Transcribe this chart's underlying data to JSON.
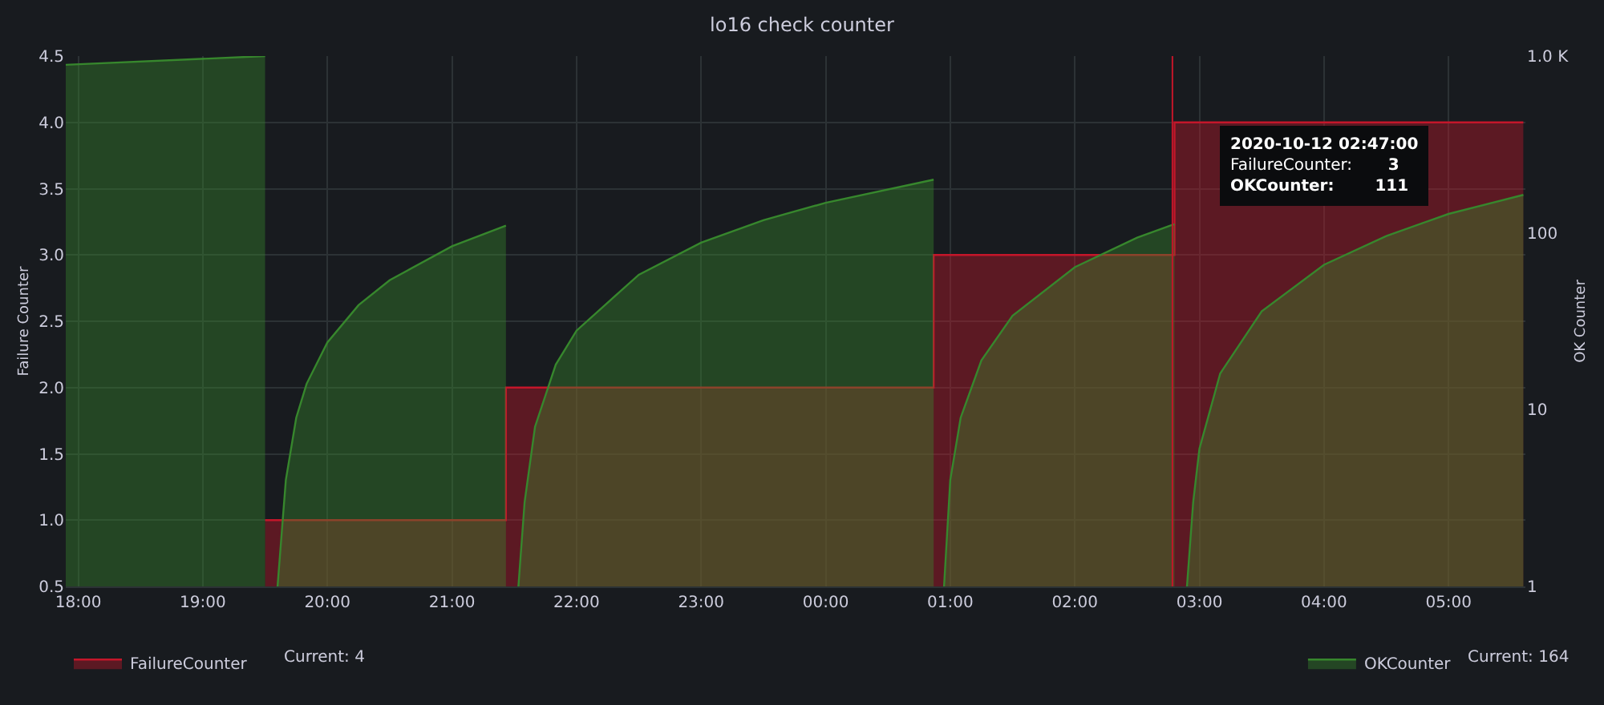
{
  "chart_data": {
    "type": "area",
    "title": "lo16 check counter",
    "ylabel": "Failure Counter",
    "y2label": "OK Counter",
    "xlim": [
      "2020-10-11T17:54",
      "2020-10-12T05:37"
    ],
    "xticks": [
      {
        "value": "2020-10-11T18:00",
        "label": "18:00"
      },
      {
        "value": "2020-10-11T19:00",
        "label": "19:00"
      },
      {
        "value": "2020-10-11T20:00",
        "label": "20:00"
      },
      {
        "value": "2020-10-11T21:00",
        "label": "21:00"
      },
      {
        "value": "2020-10-11T22:00",
        "label": "22:00"
      },
      {
        "value": "2020-10-11T23:00",
        "label": "23:00"
      },
      {
        "value": "2020-10-12T00:00",
        "label": "00:00"
      },
      {
        "value": "2020-10-12T01:00",
        "label": "01:00"
      },
      {
        "value": "2020-10-12T02:00",
        "label": "02:00"
      },
      {
        "value": "2020-10-12T03:00",
        "label": "03:00"
      },
      {
        "value": "2020-10-12T04:00",
        "label": "04:00"
      },
      {
        "value": "2020-10-12T05:00",
        "label": "05:00"
      }
    ],
    "ylim": [
      0.5,
      4.5
    ],
    "yticks": [
      0.5,
      {
        "value": 1,
        "label": "1.0"
      },
      1.5,
      {
        "value": 2,
        "label": "2.0"
      },
      2.5,
      {
        "value": 3,
        "label": "3.0"
      },
      3.5,
      {
        "value": 4,
        "label": "4.0"
      },
      4.5
    ],
    "y2lim": [
      1,
      1000
    ],
    "y2ticks": [
      1,
      10,
      100,
      {
        "value": 1000,
        "label": "1.0 K"
      }
    ],
    "log": "y2",
    "grid": true,
    "legend": "bottom",
    "series": [
      {
        "name": "FailureCounter",
        "color": "#c4162a",
        "x": [
          "2020-10-11T19:30",
          "2020-10-11T21:26",
          "2020-10-11T21:26",
          "2020-10-12T00:52",
          "2020-10-12T00:52",
          "2020-10-12T02:48",
          "2020-10-12T02:48",
          "2020-10-12T05:36"
        ],
        "values": [
          1,
          1,
          2,
          2,
          3,
          3,
          4,
          4
        ]
      },
      {
        "name": "OKCounter",
        "axis": "y2",
        "color": "#37872d",
        "x": [
          "2020-10-11T17:54",
          "2020-10-11T19:30",
          "2020-10-11T19:33",
          "2020-10-11T19:36",
          "2020-10-11T19:40",
          "2020-10-11T19:45",
          "2020-10-11T19:50",
          "2020-10-11T20:00",
          "2020-10-11T20:15",
          "2020-10-11T20:30",
          "2020-10-11T21:00",
          "2020-10-11T21:26",
          "2020-10-11T21:29",
          "2020-10-11T21:32",
          "2020-10-11T21:35",
          "2020-10-11T21:40",
          "2020-10-11T21:50",
          "2020-10-11T22:00",
          "2020-10-11T22:30",
          "2020-10-11T23:00",
          "2020-10-11T23:30",
          "2020-10-12T00:00",
          "2020-10-12T00:52",
          "2020-10-12T00:54",
          "2020-10-12T00:57",
          "2020-10-12T01:00",
          "2020-10-12T01:05",
          "2020-10-12T01:15",
          "2020-10-12T01:30",
          "2020-10-12T02:00",
          "2020-10-12T02:30",
          "2020-10-12T02:47",
          "2020-10-12T02:48",
          "2020-10-12T02:51",
          "2020-10-12T02:54",
          "2020-10-12T02:57",
          "2020-10-12T03:00",
          "2020-10-12T03:10",
          "2020-10-12T03:30",
          "2020-10-12T04:00",
          "2020-10-12T04:30",
          "2020-10-12T05:00",
          "2020-10-12T05:36"
        ],
        "values": [
          893,
          1000,
          null,
          1,
          4,
          9,
          14,
          24,
          39,
          54,
          84,
          110,
          null,
          1,
          3,
          8,
          18,
          28,
          58,
          88,
          118,
          148,
          200,
          null,
          1,
          4,
          9,
          19,
          34,
          64,
          94,
          111,
          112,
          null,
          1,
          3,
          6,
          16,
          36,
          66,
          96,
          128,
          164
        ]
      }
    ],
    "ref_lines": [
      {
        "axis": "x",
        "value": "2020-10-12T02:47",
        "color": "#c4162a"
      }
    ],
    "annotations": [
      "2020-10-12 02:47:00",
      "FailureCounter:",
      "3",
      "OKCounter:",
      "111",
      "Current: 4",
      "Current: 164"
    ]
  }
}
